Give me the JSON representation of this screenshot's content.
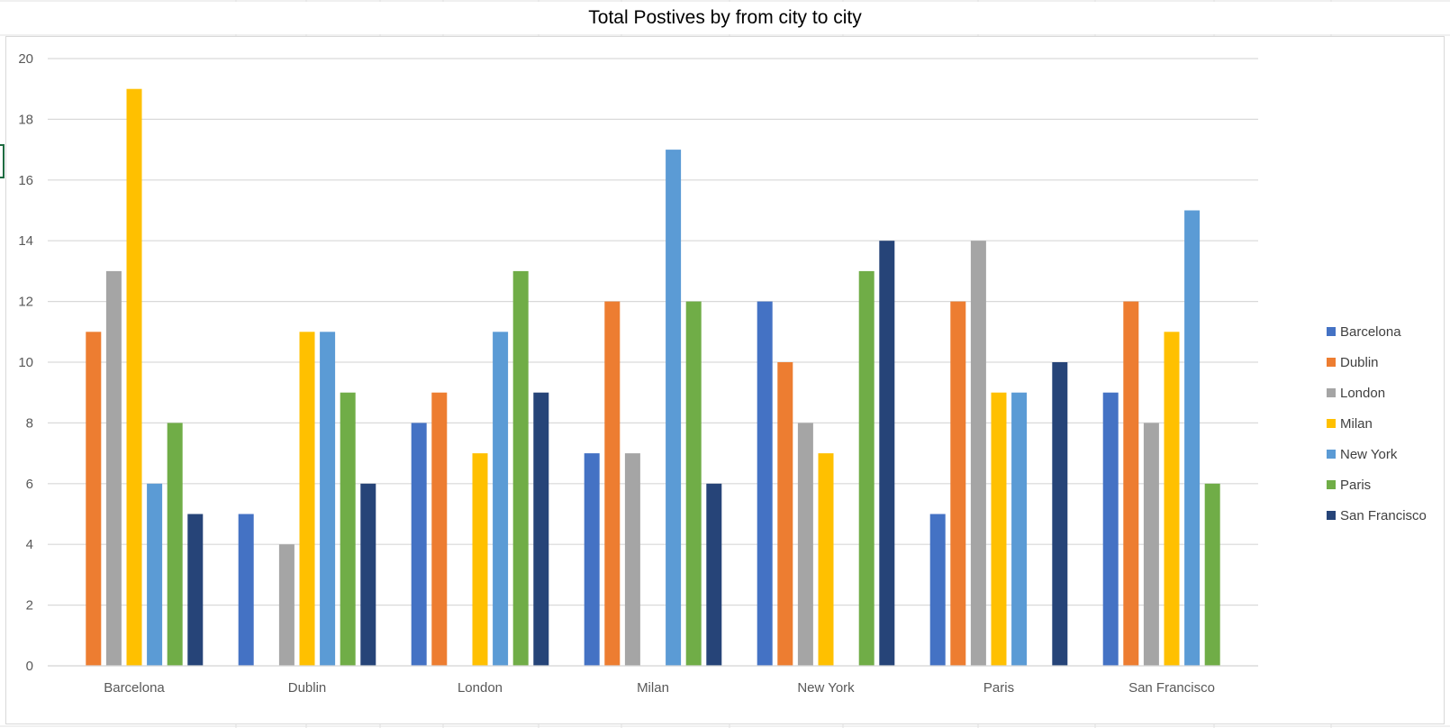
{
  "chart_data": {
    "type": "bar",
    "title": "Total Postives by from city to city",
    "xlabel": "",
    "ylabel": "",
    "ylim": [
      0,
      20
    ],
    "yticks": [
      "0",
      "2",
      "4",
      "6",
      "8",
      "10",
      "12",
      "14",
      "16",
      "18",
      "20"
    ],
    "grid": true,
    "legend": "right",
    "categories": [
      "Barcelona",
      "Dublin",
      "London",
      "Milan",
      "New York",
      "Paris",
      "San Francisco"
    ],
    "series": [
      {
        "name": "Barcelona",
        "color": "#4472c4",
        "values": [
          0,
          5,
          8,
          7,
          12,
          5,
          9
        ]
      },
      {
        "name": "Dublin",
        "color": "#ed7d31",
        "values": [
          11,
          0,
          9,
          12,
          10,
          12,
          12
        ]
      },
      {
        "name": "London",
        "color": "#a5a5a5",
        "values": [
          13,
          4,
          0,
          7,
          8,
          14,
          8
        ]
      },
      {
        "name": "Milan",
        "color": "#ffc000",
        "values": [
          19,
          11,
          7,
          0,
          7,
          9,
          11
        ]
      },
      {
        "name": "New York",
        "color": "#5b9bd5",
        "values": [
          6,
          11,
          11,
          17,
          0,
          9,
          15
        ]
      },
      {
        "name": "Paris",
        "color": "#70ad47",
        "values": [
          8,
          9,
          13,
          12,
          13,
          0,
          6
        ]
      },
      {
        "name": "San Francisco",
        "color": "#264478",
        "values": [
          5,
          6,
          9,
          6,
          14,
          10,
          0
        ]
      }
    ]
  }
}
